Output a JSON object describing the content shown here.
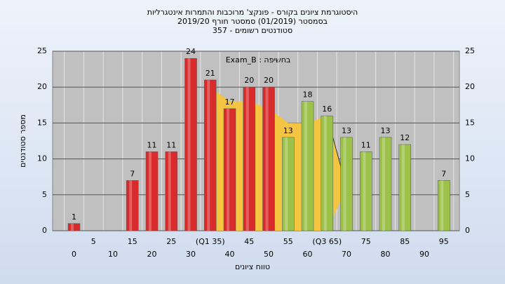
{
  "chart_data": {
    "type": "bar",
    "title": [
      "היסטוגרמת ציונים בקורס - פונקצ' מרוכבות והתמרות אינטגרליות",
      "בסמסטר  (01/2019)  סמסטר חורף 2019/20",
      "סטודנטים רשומים - 357"
    ],
    "annotation": "בחשיפה : Exam_B",
    "x_label": "טווח ציונים",
    "y_label": "מספר סטודנטים",
    "categories": [
      "0",
      "5",
      "10",
      "15",
      "20",
      "25",
      "30",
      "(Q1 35)",
      "40",
      "45",
      "50",
      "55",
      "60",
      "(Q3 65)",
      "70",
      "75",
      "80",
      "85",
      "90",
      "95"
    ],
    "values": [
      1,
      null,
      null,
      7,
      11,
      11,
      24,
      21,
      17,
      20,
      20,
      13,
      18,
      16,
      13,
      11,
      13,
      12,
      null,
      7
    ],
    "colors": [
      "#d92b2b",
      null,
      null,
      "#d92b2b",
      "#d92b2b",
      "#d92b2b",
      "#d92b2b",
      "#d92b2b",
      "#d92b2b",
      "#d92b2b",
      "#d92b2b",
      "#9cc24a",
      "#9cc24a",
      "#9cc24a",
      "#9cc24a",
      "#9cc24a",
      "#9cc24a",
      "#9cc24a",
      null,
      "#9cc24a"
    ],
    "area": {
      "x": [
        35,
        40,
        45,
        50,
        55,
        60,
        65,
        70
      ],
      "values": [
        20,
        18,
        18,
        17,
        15,
        15,
        16,
        6
      ],
      "color": "#f5c542"
    },
    "ylim": [
      0,
      25
    ],
    "yticks": [
      0,
      5,
      10,
      15,
      20,
      25
    ],
    "grid": true
  }
}
